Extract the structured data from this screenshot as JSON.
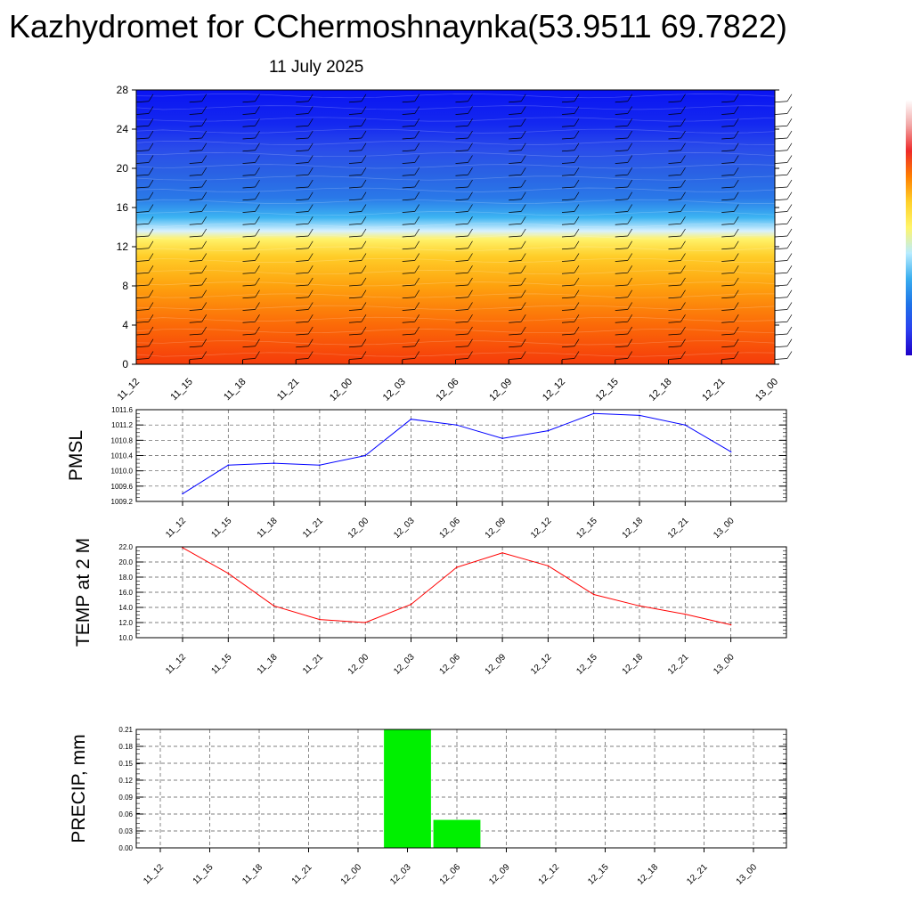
{
  "title": "Kazhydromet for CChermoshnaynka(53.9511 69.7822)",
  "date": "11 July 2025",
  "colorbar": {
    "colors": [
      "#ffffff",
      "#f2a6a6",
      "#ee2a2a",
      "#ff7f00",
      "#ffd12a",
      "#fff56a",
      "#b8ecff",
      "#39aeef",
      "#1e73e8",
      "#2b3ff0",
      "#1e00c8"
    ]
  },
  "chart_data": [
    {
      "type": "heatmap",
      "name": "cross-section",
      "x": [
        "11_12",
        "11_15",
        "11_18",
        "11_21",
        "12_00",
        "12_03",
        "12_06",
        "12_09",
        "12_12",
        "12_15",
        "12_18",
        "12_21",
        "13_00"
      ],
      "y_ticks": [
        0,
        4,
        8,
        12,
        16,
        20,
        24,
        28
      ],
      "ylim": [
        0,
        28
      ],
      "layers": [
        {
          "y": 0,
          "color": "#f53b0a"
        },
        {
          "y": 4,
          "color": "#fb6a08"
        },
        {
          "y": 8,
          "color": "#fea20e"
        },
        {
          "y": 11,
          "color": "#ffcd28"
        },
        {
          "y": 12.8,
          "color": "#fff26a"
        },
        {
          "y": 13.6,
          "color": "#d8f1ff"
        },
        {
          "y": 15,
          "color": "#3cb4f2"
        },
        {
          "y": 17,
          "color": "#2a78e8"
        },
        {
          "y": 19.5,
          "color": "#2a62e4"
        },
        {
          "y": 22,
          "color": "#2a4cea"
        },
        {
          "y": 24.5,
          "color": "#1428f0"
        },
        {
          "y": 28,
          "color": "#0a14f2"
        }
      ]
    },
    {
      "type": "line",
      "ylabel": "PMSL",
      "x": [
        "11_12",
        "11_15",
        "11_18",
        "11_21",
        "12_00",
        "12_03",
        "12_06",
        "12_09",
        "12_12",
        "12_15",
        "12_18",
        "12_21",
        "13_00"
      ],
      "values": [
        1009.4,
        1010.15,
        1010.2,
        1010.15,
        1010.4,
        1011.35,
        1011.2,
        1010.85,
        1011.05,
        1011.5,
        1011.45,
        1011.2,
        1010.5
      ],
      "ylim": [
        1009.2,
        1011.6
      ],
      "y_ticks": [
        "1009.2",
        "1009.6",
        "1010.0",
        "1010.4",
        "1010.8",
        "1011.2",
        "1011.6"
      ],
      "color": "#0000ff",
      "grid": true
    },
    {
      "type": "line",
      "ylabel": "TEMP at 2 M",
      "x": [
        "11_12",
        "11_15",
        "11_18",
        "11_21",
        "12_00",
        "12_03",
        "12_06",
        "12_09",
        "12_12",
        "12_15",
        "12_18",
        "12_21",
        "13_00"
      ],
      "values": [
        21.9,
        18.5,
        14.2,
        12.4,
        12.0,
        14.4,
        19.3,
        21.2,
        19.5,
        15.7,
        14.2,
        13.1,
        11.7
      ],
      "ylim": [
        10,
        22
      ],
      "y_ticks": [
        "10.0",
        "12.0",
        "14.0",
        "16.0",
        "18.0",
        "20.0",
        "22.0"
      ],
      "color": "#ff0000",
      "grid": true
    },
    {
      "type": "bar",
      "ylabel": "PRECIP, mm",
      "x": [
        "11_12",
        "11_15",
        "11_18",
        "11_21",
        "12_00",
        "12_03",
        "12_06",
        "12_09",
        "12_12",
        "12_15",
        "12_18",
        "12_21",
        "13_00"
      ],
      "values": [
        0,
        0,
        0,
        0,
        0,
        0.21,
        0.05,
        0,
        0,
        0,
        0,
        0,
        0
      ],
      "ylim": [
        0,
        0.21
      ],
      "y_ticks": [
        "0.00",
        "0.03",
        "0.06",
        "0.09",
        "0.12",
        "0.15",
        "0.18",
        "0.21"
      ],
      "color": "#00f000",
      "grid": true
    }
  ]
}
